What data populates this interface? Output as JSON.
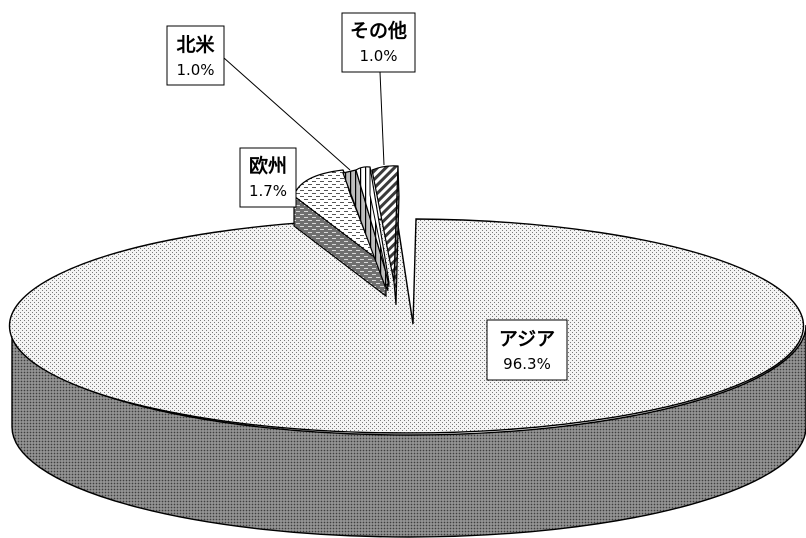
{
  "chart_data": {
    "type": "pie",
    "title": "",
    "three_d": true,
    "exploded": true,
    "slices": [
      {
        "name": "アジア",
        "value": 96.3,
        "label": "96.3%",
        "pattern": "fine-dots"
      },
      {
        "name": "その他",
        "value": 1.0,
        "label": "1.0%",
        "pattern": "diagonal-hatch"
      },
      {
        "name": "北米",
        "value": 1.0,
        "label": "1.0%",
        "pattern": "vertical-lines"
      },
      {
        "name": "欧州",
        "value": 1.7,
        "label": "1.7%",
        "pattern": "dashes"
      }
    ],
    "colors": {
      "background": "#ffffff",
      "outline": "#000000",
      "side_face": "#8c8c8c",
      "top_face": "#f2f2f2"
    }
  }
}
